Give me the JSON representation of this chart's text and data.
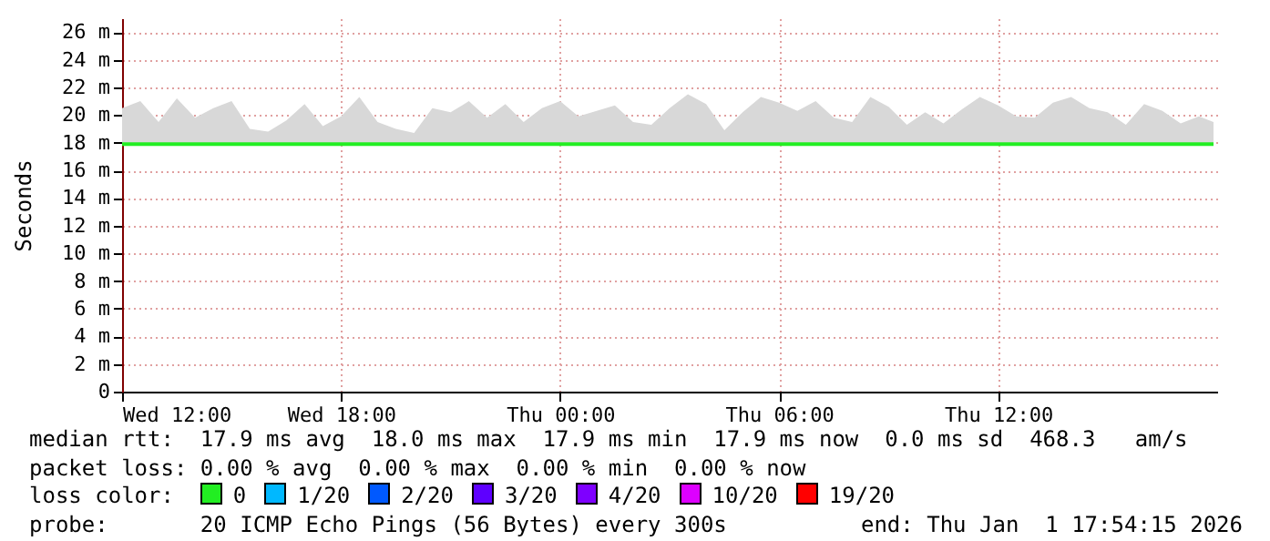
{
  "chart_data": {
    "type": "line",
    "ylabel": "Seconds",
    "legend_title": "loss color:",
    "legend": "bottom",
    "grid": true,
    "annotations": [
      "median rtt:  17.9 ms avg  18.0 ms max  17.9 ms min  17.9 ms now  0.0 ms sd  468.3   am/s",
      "packet loss: 0.00 % avg  0.00 % max  0.00 % min  0.00 % now",
      "probe:       20 ICMP Echo Pings (56 Bytes) every 300s",
      "end: Thu Jan  1 17:54:15 2026"
    ],
    "xlim": [
      "2025-12-31T12:00",
      "2026-01-01T18:00"
    ],
    "xticks": [
      {
        "value": "2025-12-31T12:00",
        "label": "Wed 12:00"
      },
      {
        "value": "2025-12-31T18:00",
        "label": "Wed 18:00"
      },
      {
        "value": "2026-01-01T00:00",
        "label": "Thu 00:00"
      },
      {
        "value": "2026-01-01T06:00",
        "label": "Thu 06:00"
      },
      {
        "value": "2026-01-01T12:00",
        "label": "Thu 12:00"
      }
    ],
    "ylim": [
      0,
      27
    ],
    "yticks": [
      0,
      {
        "value": 2,
        "label": "2 m"
      },
      {
        "value": 4,
        "label": "4 m"
      },
      {
        "value": 6,
        "label": "6 m"
      },
      {
        "value": 8,
        "label": "8 m"
      },
      {
        "value": 10,
        "label": "10 m"
      },
      {
        "value": 12,
        "label": "12 m"
      },
      {
        "value": 14,
        "label": "14 m"
      },
      {
        "value": 16,
        "label": "16 m"
      },
      {
        "value": 18,
        "label": "18 m"
      },
      {
        "value": 20,
        "label": "20 m"
      },
      {
        "value": 22,
        "label": "22 m"
      },
      {
        "value": 24,
        "label": "24 m"
      },
      {
        "value": 26,
        "label": "26 m"
      }
    ],
    "x": [
      "2025-12-31T12:00",
      "2025-12-31T12:30",
      "2025-12-31T13:00",
      "2025-12-31T13:30",
      "2025-12-31T14:00",
      "2025-12-31T14:30",
      "2025-12-31T15:00",
      "2025-12-31T15:30",
      "2025-12-31T16:00",
      "2025-12-31T16:30",
      "2025-12-31T17:00",
      "2025-12-31T17:30",
      "2025-12-31T18:00",
      "2025-12-31T18:30",
      "2025-12-31T19:00",
      "2025-12-31T19:30",
      "2025-12-31T20:00",
      "2025-12-31T20:30",
      "2025-12-31T21:00",
      "2025-12-31T21:30",
      "2025-12-31T22:00",
      "2025-12-31T22:30",
      "2025-12-31T23:00",
      "2025-12-31T23:30",
      "2026-01-01T00:00",
      "2026-01-01T00:30",
      "2026-01-01T01:00",
      "2026-01-01T01:30",
      "2026-01-01T02:00",
      "2026-01-01T02:30",
      "2026-01-01T03:00",
      "2026-01-01T03:30",
      "2026-01-01T04:00",
      "2026-01-01T04:30",
      "2026-01-01T05:00",
      "2026-01-01T05:30",
      "2026-01-01T06:00",
      "2026-01-01T06:30",
      "2026-01-01T07:00",
      "2026-01-01T07:30",
      "2026-01-01T08:00",
      "2026-01-01T08:30",
      "2026-01-01T09:00",
      "2026-01-01T09:30",
      "2026-01-01T10:00",
      "2026-01-01T10:30",
      "2026-01-01T11:00",
      "2026-01-01T11:30",
      "2026-01-01T12:00",
      "2026-01-01T12:30",
      "2026-01-01T13:00",
      "2026-01-01T13:30",
      "2026-01-01T14:00",
      "2026-01-01T14:30",
      "2026-01-01T15:00",
      "2026-01-01T15:30",
      "2026-01-01T16:00",
      "2026-01-01T16:30",
      "2026-01-01T17:00",
      "2026-01-01T17:30",
      "2026-01-01T17:54"
    ],
    "series": [
      {
        "name": "0",
        "color": "#22ee22",
        "values": [
          17.9,
          17.9,
          17.9,
          17.9,
          17.9,
          17.9,
          17.9,
          17.9,
          17.9,
          17.9,
          17.9,
          17.9,
          17.9,
          17.9,
          17.9,
          17.9,
          17.9,
          17.9,
          17.9,
          17.9,
          17.9,
          17.9,
          17.9,
          17.9,
          17.9,
          17.9,
          17.9,
          17.9,
          17.9,
          17.9,
          17.9,
          17.9,
          17.9,
          17.9,
          17.9,
          17.9,
          17.9,
          17.9,
          17.9,
          17.9,
          17.9,
          17.9,
          17.9,
          17.9,
          17.9,
          17.9,
          17.9,
          17.9,
          17.9,
          17.9,
          17.9,
          17.9,
          17.9,
          17.9,
          17.9,
          17.9,
          17.9,
          17.9,
          17.9,
          17.9,
          17.9
        ],
        "lower": [
          17.9,
          17.9,
          17.9,
          17.9,
          17.9,
          17.9,
          17.9,
          17.9,
          17.9,
          17.9,
          17.9,
          17.9,
          17.9,
          17.9,
          17.9,
          17.9,
          17.9,
          17.9,
          17.9,
          17.9,
          17.9,
          17.9,
          17.9,
          17.9,
          17.9,
          17.9,
          17.9,
          17.9,
          17.9,
          17.9,
          17.9,
          17.9,
          17.9,
          17.9,
          17.9,
          17.9,
          17.9,
          17.9,
          17.9,
          17.9,
          17.9,
          17.9,
          17.9,
          17.9,
          17.9,
          17.9,
          17.9,
          17.9,
          17.9,
          17.9,
          17.9,
          17.9,
          17.9,
          17.9,
          17.9,
          17.9,
          17.9,
          17.9,
          17.9,
          17.9,
          17.9
        ],
        "upper": [
          20.5,
          21,
          19.5,
          21.2,
          19.8,
          20.5,
          21,
          19,
          18.8,
          19.6,
          20.8,
          19.2,
          19.9,
          21.3,
          19.5,
          19,
          18.7,
          20.5,
          20.2,
          21,
          19.8,
          20.8,
          19.5,
          20.5,
          21,
          19.9,
          20.3,
          20.7,
          19.5,
          19.3,
          20.5,
          21.5,
          20.8,
          18.9,
          20.2,
          21.3,
          20.9,
          20.3,
          21,
          19.8,
          19.5,
          21.3,
          20.6,
          19.3,
          20.2,
          19.4,
          20.4,
          21.3,
          20.7,
          19.9,
          19.8,
          20.9,
          21.3,
          20.5,
          20.2,
          19.3,
          20.8,
          20.3,
          19.4,
          19.9,
          19.5
        ]
      },
      {
        "name": "1/20",
        "color": "#00b8ff",
        "values": [
          null,
          null,
          null,
          null,
          null,
          null,
          null,
          null,
          null,
          null,
          null,
          null,
          null,
          null,
          null,
          null,
          null,
          null,
          null,
          null,
          null,
          null,
          null,
          null,
          null,
          null,
          null,
          null,
          null,
          null,
          null,
          null,
          null,
          null,
          null,
          null,
          null,
          null,
          null,
          null,
          null,
          null,
          null,
          null,
          null,
          null,
          null,
          null,
          null,
          null,
          null,
          null,
          null,
          null,
          null,
          null,
          null,
          null,
          null,
          null,
          null
        ]
      },
      {
        "name": "2/20",
        "color": "#0059ff",
        "values": [
          null,
          null,
          null,
          null,
          null,
          null,
          null,
          null,
          null,
          null,
          null,
          null,
          null,
          null,
          null,
          null,
          null,
          null,
          null,
          null,
          null,
          null,
          null,
          null,
          null,
          null,
          null,
          null,
          null,
          null,
          null,
          null,
          null,
          null,
          null,
          null,
          null,
          null,
          null,
          null,
          null,
          null,
          null,
          null,
          null,
          null,
          null,
          null,
          null,
          null,
          null,
          null,
          null,
          null,
          null,
          null,
          null,
          null,
          null,
          null,
          null
        ]
      },
      {
        "name": "3/20",
        "color": "#5e00ff",
        "values": [
          null,
          null,
          null,
          null,
          null,
          null,
          null,
          null,
          null,
          null,
          null,
          null,
          null,
          null,
          null,
          null,
          null,
          null,
          null,
          null,
          null,
          null,
          null,
          null,
          null,
          null,
          null,
          null,
          null,
          null,
          null,
          null,
          null,
          null,
          null,
          null,
          null,
          null,
          null,
          null,
          null,
          null,
          null,
          null,
          null,
          null,
          null,
          null,
          null,
          null,
          null,
          null,
          null,
          null,
          null,
          null,
          null,
          null,
          null,
          null,
          null
        ]
      },
      {
        "name": "4/20",
        "color": "#7e00ff",
        "values": [
          null,
          null,
          null,
          null,
          null,
          null,
          null,
          null,
          null,
          null,
          null,
          null,
          null,
          null,
          null,
          null,
          null,
          null,
          null,
          null,
          null,
          null,
          null,
          null,
          null,
          null,
          null,
          null,
          null,
          null,
          null,
          null,
          null,
          null,
          null,
          null,
          null,
          null,
          null,
          null,
          null,
          null,
          null,
          null,
          null,
          null,
          null,
          null,
          null,
          null,
          null,
          null,
          null,
          null,
          null,
          null,
          null,
          null,
          null,
          null,
          null
        ]
      },
      {
        "name": "10/20",
        "color": "#dd00ff",
        "values": [
          null,
          null,
          null,
          null,
          null,
          null,
          null,
          null,
          null,
          null,
          null,
          null,
          null,
          null,
          null,
          null,
          null,
          null,
          null,
          null,
          null,
          null,
          null,
          null,
          null,
          null,
          null,
          null,
          null,
          null,
          null,
          null,
          null,
          null,
          null,
          null,
          null,
          null,
          null,
          null,
          null,
          null,
          null,
          null,
          null,
          null,
          null,
          null,
          null,
          null,
          null,
          null,
          null,
          null,
          null,
          null,
          null,
          null,
          null,
          null,
          null
        ]
      },
      {
        "name": "19/20",
        "color": "#ff0000",
        "values": [
          null,
          null,
          null,
          null,
          null,
          null,
          null,
          null,
          null,
          null,
          null,
          null,
          null,
          null,
          null,
          null,
          null,
          null,
          null,
          null,
          null,
          null,
          null,
          null,
          null,
          null,
          null,
          null,
          null,
          null,
          null,
          null,
          null,
          null,
          null,
          null,
          null,
          null,
          null,
          null,
          null,
          null,
          null,
          null,
          null,
          null,
          null,
          null,
          null,
          null,
          null,
          null,
          null,
          null,
          null,
          null,
          null,
          null,
          null,
          null,
          null
        ]
      }
    ]
  }
}
